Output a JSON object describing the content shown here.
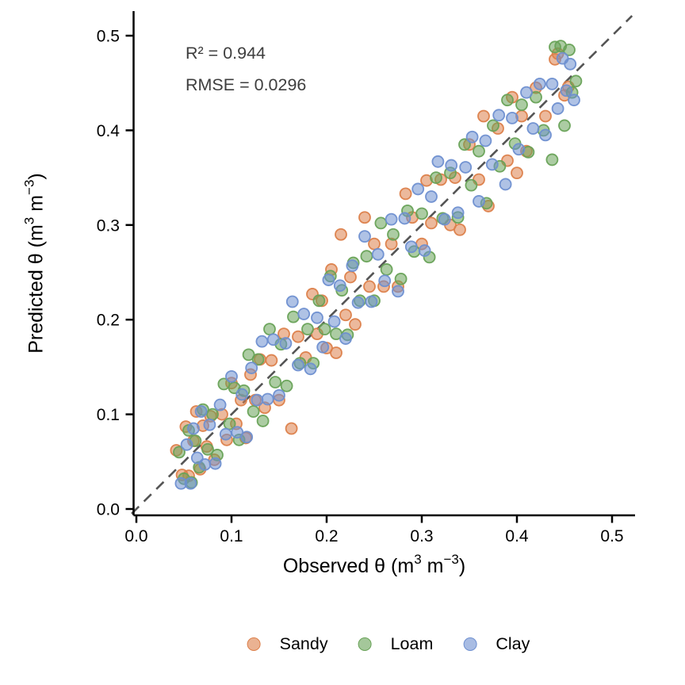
{
  "figure": {
    "background": "#ffffff",
    "annotations": {
      "r2": "R² = 0.944",
      "rmse": "RMSE = 0.0296"
    }
  },
  "chart_data": {
    "type": "scatter",
    "title": "",
    "xlabel": "Observed θ (m³ m⁻³)",
    "ylabel": "Predicted θ (m³ m⁻³)",
    "xlabel_parts": [
      {
        "t": "Observed θ (m"
      },
      {
        "t": "3",
        "sup": true
      },
      {
        "t": " m"
      },
      {
        "t": "−3",
        "sup": true
      },
      {
        "t": ")"
      }
    ],
    "ylabel_parts": [
      {
        "t": "Predicted θ (m"
      },
      {
        "t": "3",
        "sup": true
      },
      {
        "t": " m"
      },
      {
        "t": "−3",
        "sup": true
      },
      {
        "t": ")"
      }
    ],
    "xlim": [
      0,
      0.52
    ],
    "ylim": [
      0,
      0.515
    ],
    "x_ticks": {
      "labels": [
        "0.0",
        "0.1",
        "0.2",
        "0.3",
        "0.4",
        "0.5"
      ],
      "values": [
        0,
        0.1,
        0.2,
        0.3,
        0.4,
        0.5
      ]
    },
    "y_ticks": {
      "labels": [
        "0.0",
        "0.1",
        "0.2",
        "0.3",
        "0.4",
        "0.5"
      ],
      "values": [
        0,
        0.1,
        0.2,
        0.3,
        0.4,
        0.5
      ]
    },
    "grid": false,
    "legend_position": "bottom",
    "axis_color": "#000000",
    "annotation_color": "#3e3e3e",
    "identity_line": {
      "style": "dashed",
      "color": "#555555",
      "from": [
        -0.005,
        -0.005
      ],
      "to": [
        0.521,
        0.521
      ]
    },
    "stats": {
      "r_squared": 0.944,
      "rmse": 0.0296
    },
    "series": [
      {
        "name": "Sandy",
        "color": "#DC7F4A",
        "points": [
          [
            0.042,
            0.062
          ],
          [
            0.048,
            0.036
          ],
          [
            0.052,
            0.087
          ],
          [
            0.055,
            0.035
          ],
          [
            0.06,
            0.072
          ],
          [
            0.063,
            0.103
          ],
          [
            0.067,
            0.042
          ],
          [
            0.07,
            0.088
          ],
          [
            0.074,
            0.066
          ],
          [
            0.078,
            0.098
          ],
          [
            0.082,
            0.052
          ],
          [
            0.09,
            0.1
          ],
          [
            0.095,
            0.073
          ],
          [
            0.1,
            0.133
          ],
          [
            0.105,
            0.09
          ],
          [
            0.11,
            0.115
          ],
          [
            0.115,
            0.075
          ],
          [
            0.12,
            0.142
          ],
          [
            0.125,
            0.115
          ],
          [
            0.13,
            0.158
          ],
          [
            0.135,
            0.107
          ],
          [
            0.142,
            0.157
          ],
          [
            0.15,
            0.115
          ],
          [
            0.155,
            0.185
          ],
          [
            0.163,
            0.085
          ],
          [
            0.17,
            0.182
          ],
          [
            0.178,
            0.16
          ],
          [
            0.185,
            0.227
          ],
          [
            0.19,
            0.185
          ],
          [
            0.195,
            0.22
          ],
          [
            0.2,
            0.17
          ],
          [
            0.205,
            0.253
          ],
          [
            0.21,
            0.165
          ],
          [
            0.215,
            0.29
          ],
          [
            0.22,
            0.205
          ],
          [
            0.225,
            0.245
          ],
          [
            0.23,
            0.195
          ],
          [
            0.24,
            0.308
          ],
          [
            0.245,
            0.235
          ],
          [
            0.25,
            0.28
          ],
          [
            0.26,
            0.235
          ],
          [
            0.268,
            0.28
          ],
          [
            0.275,
            0.235
          ],
          [
            0.283,
            0.333
          ],
          [
            0.29,
            0.308
          ],
          [
            0.3,
            0.28
          ],
          [
            0.305,
            0.347
          ],
          [
            0.31,
            0.302
          ],
          [
            0.32,
            0.348
          ],
          [
            0.33,
            0.3
          ],
          [
            0.335,
            0.35
          ],
          [
            0.34,
            0.295
          ],
          [
            0.35,
            0.385
          ],
          [
            0.36,
            0.348
          ],
          [
            0.365,
            0.415
          ],
          [
            0.37,
            0.32
          ],
          [
            0.38,
            0.402
          ],
          [
            0.39,
            0.368
          ],
          [
            0.395,
            0.435
          ],
          [
            0.4,
            0.355
          ],
          [
            0.405,
            0.415
          ],
          [
            0.41,
            0.378
          ],
          [
            0.42,
            0.445
          ],
          [
            0.43,
            0.415
          ],
          [
            0.44,
            0.475
          ],
          [
            0.443,
            0.481
          ],
          [
            0.45,
            0.437
          ],
          [
            0.454,
            0.446
          ]
        ]
      },
      {
        "name": "Loam",
        "color": "#68A257",
        "points": [
          [
            0.045,
            0.06
          ],
          [
            0.05,
            0.032
          ],
          [
            0.055,
            0.083
          ],
          [
            0.058,
            0.028
          ],
          [
            0.062,
            0.072
          ],
          [
            0.066,
            0.044
          ],
          [
            0.07,
            0.105
          ],
          [
            0.075,
            0.063
          ],
          [
            0.08,
            0.1
          ],
          [
            0.085,
            0.057
          ],
          [
            0.092,
            0.132
          ],
          [
            0.098,
            0.09
          ],
          [
            0.103,
            0.128
          ],
          [
            0.108,
            0.073
          ],
          [
            0.113,
            0.125
          ],
          [
            0.118,
            0.163
          ],
          [
            0.123,
            0.103
          ],
          [
            0.128,
            0.158
          ],
          [
            0.133,
            0.093
          ],
          [
            0.14,
            0.19
          ],
          [
            0.146,
            0.134
          ],
          [
            0.152,
            0.174
          ],
          [
            0.158,
            0.13
          ],
          [
            0.165,
            0.203
          ],
          [
            0.172,
            0.154
          ],
          [
            0.18,
            0.19
          ],
          [
            0.186,
            0.154
          ],
          [
            0.192,
            0.22
          ],
          [
            0.198,
            0.19
          ],
          [
            0.204,
            0.246
          ],
          [
            0.21,
            0.185
          ],
          [
            0.216,
            0.231
          ],
          [
            0.222,
            0.184
          ],
          [
            0.228,
            0.26
          ],
          [
            0.235,
            0.22
          ],
          [
            0.242,
            0.267
          ],
          [
            0.25,
            0.22
          ],
          [
            0.257,
            0.302
          ],
          [
            0.263,
            0.253
          ],
          [
            0.27,
            0.29
          ],
          [
            0.278,
            0.243
          ],
          [
            0.285,
            0.315
          ],
          [
            0.292,
            0.272
          ],
          [
            0.3,
            0.312
          ],
          [
            0.308,
            0.266
          ],
          [
            0.315,
            0.35
          ],
          [
            0.322,
            0.307
          ],
          [
            0.33,
            0.355
          ],
          [
            0.338,
            0.308
          ],
          [
            0.345,
            0.385
          ],
          [
            0.352,
            0.342
          ],
          [
            0.36,
            0.378
          ],
          [
            0.368,
            0.323
          ],
          [
            0.375,
            0.405
          ],
          [
            0.382,
            0.362
          ],
          [
            0.39,
            0.432
          ],
          [
            0.398,
            0.386
          ],
          [
            0.405,
            0.427
          ],
          [
            0.412,
            0.377
          ],
          [
            0.42,
            0.435
          ],
          [
            0.428,
            0.4
          ],
          [
            0.437,
            0.369
          ],
          [
            0.44,
            0.488
          ],
          [
            0.446,
            0.489
          ],
          [
            0.45,
            0.405
          ],
          [
            0.455,
            0.485
          ],
          [
            0.458,
            0.44
          ],
          [
            0.462,
            0.452
          ]
        ]
      },
      {
        "name": "Clay",
        "color": "#6E8FD0",
        "points": [
          [
            0.047,
            0.027
          ],
          [
            0.053,
            0.068
          ],
          [
            0.057,
            0.027
          ],
          [
            0.06,
            0.085
          ],
          [
            0.064,
            0.054
          ],
          [
            0.068,
            0.103
          ],
          [
            0.072,
            0.047
          ],
          [
            0.077,
            0.089
          ],
          [
            0.083,
            0.048
          ],
          [
            0.088,
            0.11
          ],
          [
            0.094,
            0.079
          ],
          [
            0.1,
            0.14
          ],
          [
            0.106,
            0.081
          ],
          [
            0.111,
            0.121
          ],
          [
            0.116,
            0.076
          ],
          [
            0.121,
            0.149
          ],
          [
            0.127,
            0.115
          ],
          [
            0.132,
            0.177
          ],
          [
            0.138,
            0.116
          ],
          [
            0.144,
            0.179
          ],
          [
            0.15,
            0.12
          ],
          [
            0.157,
            0.175
          ],
          [
            0.164,
            0.219
          ],
          [
            0.17,
            0.152
          ],
          [
            0.176,
            0.206
          ],
          [
            0.183,
            0.148
          ],
          [
            0.19,
            0.202
          ],
          [
            0.196,
            0.171
          ],
          [
            0.202,
            0.242
          ],
          [
            0.208,
            0.198
          ],
          [
            0.214,
            0.236
          ],
          [
            0.22,
            0.18
          ],
          [
            0.227,
            0.257
          ],
          [
            0.233,
            0.218
          ],
          [
            0.24,
            0.288
          ],
          [
            0.247,
            0.219
          ],
          [
            0.254,
            0.269
          ],
          [
            0.261,
            0.241
          ],
          [
            0.268,
            0.306
          ],
          [
            0.275,
            0.23
          ],
          [
            0.282,
            0.307
          ],
          [
            0.289,
            0.277
          ],
          [
            0.296,
            0.338
          ],
          [
            0.303,
            0.273
          ],
          [
            0.31,
            0.33
          ],
          [
            0.317,
            0.367
          ],
          [
            0.324,
            0.306
          ],
          [
            0.331,
            0.363
          ],
          [
            0.338,
            0.313
          ],
          [
            0.346,
            0.361
          ],
          [
            0.353,
            0.393
          ],
          [
            0.36,
            0.325
          ],
          [
            0.367,
            0.389
          ],
          [
            0.374,
            0.364
          ],
          [
            0.381,
            0.416
          ],
          [
            0.388,
            0.343
          ],
          [
            0.395,
            0.413
          ],
          [
            0.402,
            0.38
          ],
          [
            0.41,
            0.44
          ],
          [
            0.417,
            0.402
          ],
          [
            0.424,
            0.449
          ],
          [
            0.43,
            0.395
          ],
          [
            0.437,
            0.449
          ],
          [
            0.443,
            0.423
          ],
          [
            0.448,
            0.476
          ],
          [
            0.452,
            0.442
          ],
          [
            0.456,
            0.47
          ],
          [
            0.46,
            0.432
          ]
        ]
      }
    ]
  }
}
